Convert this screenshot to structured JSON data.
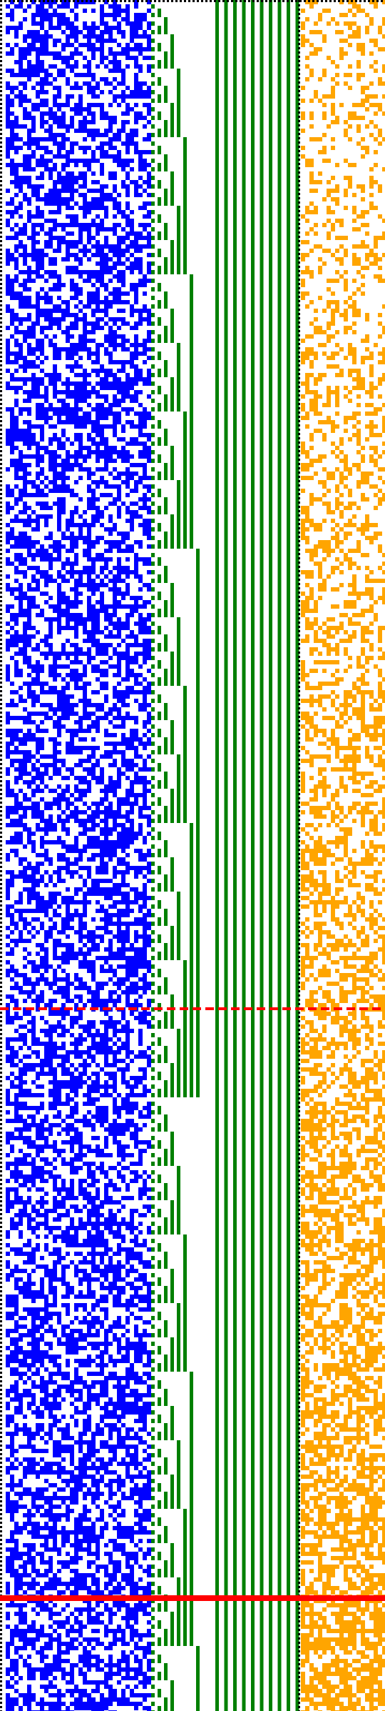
{
  "colors": {
    "background": "#ffffff",
    "dotted_border": "#000000",
    "noise_a": "#0000ff",
    "staircase_bars": "#008000",
    "noise_b": "#ffa500",
    "marker_lines": "#ff0000"
  },
  "panels": [
    {
      "name": "dotted-frame",
      "type": "dotted-border",
      "color_key": "dotted_border"
    },
    {
      "name": "blue-noise-region",
      "type": "random-binary-grid",
      "color_key": "noise_a",
      "density": 0.55
    },
    {
      "name": "green-staircase-region",
      "type": "binary-counter-bars",
      "color_key": "staircase_bars"
    },
    {
      "name": "orange-noise-region",
      "type": "random-binary-grid",
      "color_key": "noise_b",
      "density": 0.45
    }
  ],
  "markers": [
    {
      "name": "red-dashed-marker",
      "style": "dashed",
      "color_key": "marker_lines"
    },
    {
      "name": "red-solid-marker",
      "style": "solid-thick",
      "color_key": "marker_lines"
    }
  ]
}
